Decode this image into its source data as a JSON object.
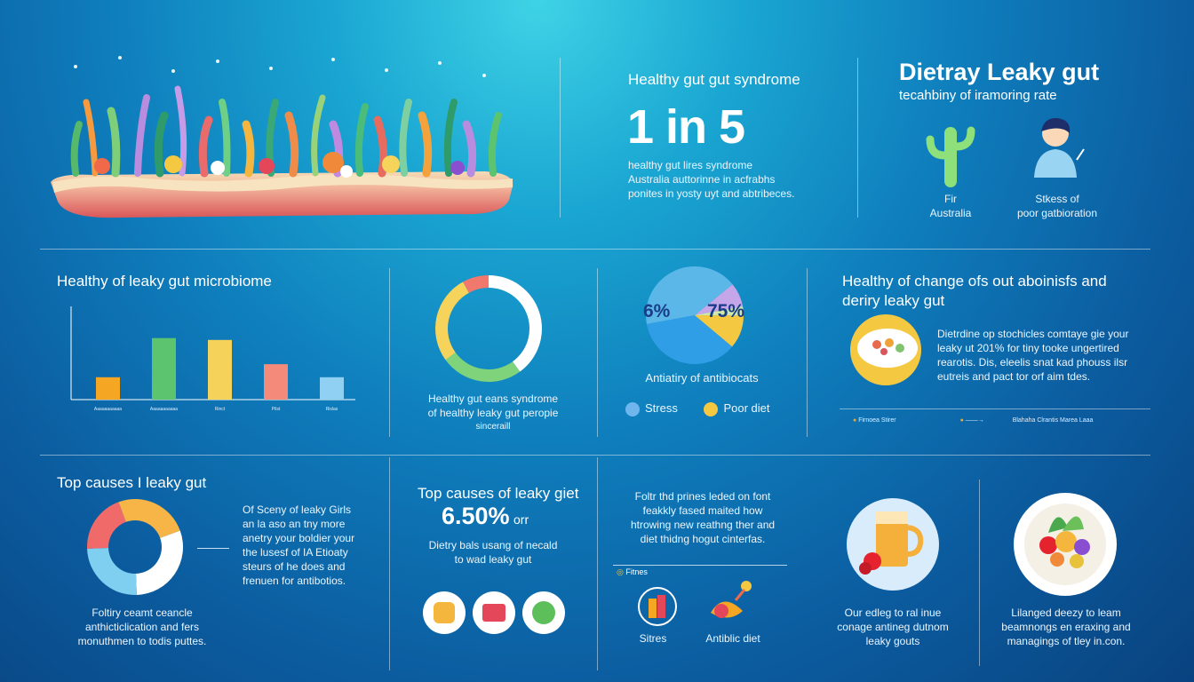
{
  "panel_top_middle": {
    "title": "Healthy gut gut syndrome",
    "stat": "1 in 5",
    "lines": [
      "healthy gut lires syndrome",
      "Australia auttorinne in acfrabhs",
      "ponites in yosty uyt and abtribeces."
    ]
  },
  "panel_top_right": {
    "title": "Dietray Leaky gut",
    "subtitle": "tecahbiny of iramoring rate",
    "left_caption": [
      "Fir",
      "Australia"
    ],
    "right_caption": [
      "Stkess of",
      "poor gatbioration"
    ]
  },
  "panel_microbiome": {
    "title": "Healthy of leaky gut microbiome"
  },
  "panel_donut1": {
    "caption": [
      "Healthy gut eans syndrome",
      "of healthy leaky gut peropie",
      "sinceraill"
    ]
  },
  "panel_pie": {
    "label_left": "6%",
    "label_right": "75%",
    "caption": "Antiatiry of antibiocats",
    "legend": [
      {
        "label": "Stress",
        "color": "#6fb6ee"
      },
      {
        "label": "Poor diet",
        "color": "#f5c842"
      }
    ]
  },
  "panel_change": {
    "title": [
      "Healthy of change ofs out aboinisfs and",
      "deriry leaky gut"
    ],
    "lines": [
      "Dietrdine op stochicles comtaye gie your",
      "leaky ut 201% for tiny tooke ungertired",
      "rearotis. Dis, eleelis snat kad phouss ilsr",
      "eutreis and pact tor orf aim tdes."
    ],
    "legend_small": [
      "Firnoea",
      "Stirer",
      "Blahaha",
      "Clrantis Marea",
      "Laaa"
    ]
  },
  "panel_causes": {
    "title": "Top causes I leaky gut",
    "side_text": [
      "Of Sceny of leaky Girls",
      "an la aso an tny more",
      "anetry your boldier your",
      "the lusesf of IA Etioaty",
      "steurs of he does and",
      "frenuen for antibotios."
    ],
    "caption": [
      "Foltiry ceamt ceancle",
      "anthicticlication and fers",
      "monuthmen to todis puttes."
    ]
  },
  "panel_causes2": {
    "title": "Top causes of leaky giet",
    "stat": "6.50%",
    "stat_suffix": "orr",
    "lines": [
      "Dietry bals usang of necald",
      "to wad leaky gut"
    ]
  },
  "panel_stress": {
    "lines": [
      "Foltr thd prines leded on font",
      "feakkly fased maited how",
      "htrowing new reathng ther and",
      "diet thidng hogut cinterfas."
    ],
    "mini_label": "Fitnes",
    "label_left": "Sitres",
    "label_right": "Antiblic diet"
  },
  "panel_drink": {
    "caption": [
      "Our edleg to ral inue",
      "conage antineg dutnom",
      "leaky gouts"
    ]
  },
  "panel_food": {
    "caption": [
      "Lilanged deezy to leam",
      "beamnongs en eraxing and",
      "managings of tley in.con."
    ]
  },
  "chart_data": [
    {
      "type": "bar",
      "title": "Healthy of leaky gut microbiome",
      "categories": [
        "Aaaaaaaaaaa",
        "Aaaaaaaaaaa",
        "Rinct",
        "Pilst",
        "Rislas"
      ],
      "values": [
        1.2,
        3.3,
        3.2,
        1.9,
        1.2
      ],
      "series_colors": [
        "#f5a623",
        "#5cc46f",
        "#f5d25a",
        "#f38a7a",
        "#8fd0f3"
      ],
      "ylim": [
        0,
        5
      ]
    },
    {
      "type": "pie",
      "donut": true,
      "values": [
        40,
        25,
        27,
        8
      ],
      "colors": [
        "#ffffff",
        "#7fd37a",
        "#f6d35b",
        "#f1786d"
      ]
    },
    {
      "type": "pie",
      "values": [
        36,
        42,
        8,
        3,
        11
      ],
      "colors": [
        "#2f9ee6",
        "#5ab7e8",
        "#c5a6e8",
        "#cfe9a9",
        "#f5c842"
      ]
    },
    {
      "type": "pie",
      "donut": true,
      "values": [
        30,
        25,
        20,
        25
      ],
      "colors": [
        "#ffffff",
        "#7ecff0",
        "#f06a6a",
        "#f6b546"
      ]
    }
  ]
}
